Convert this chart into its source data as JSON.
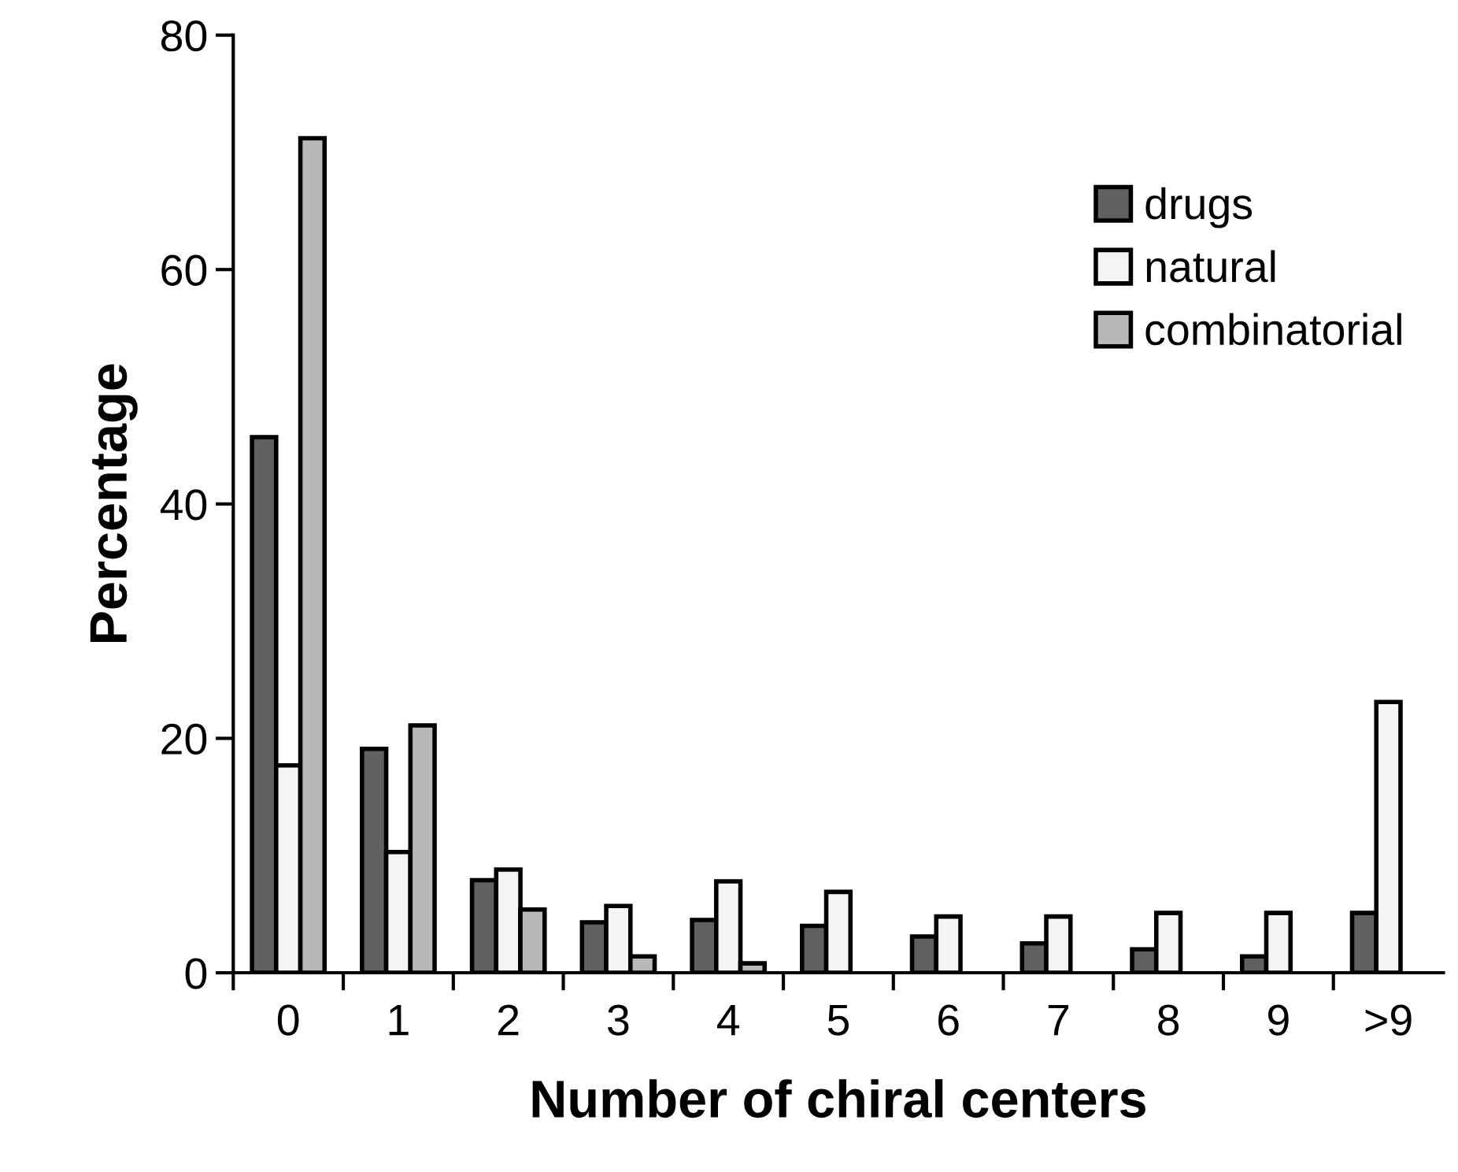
{
  "chart_data": {
    "type": "bar",
    "xlabel": "Number of chiral centers",
    "ylabel": "Percentage",
    "categories": [
      "0",
      "1",
      "2",
      "3",
      "4",
      "5",
      "6",
      "7",
      "8",
      "9",
      ">9"
    ],
    "series": [
      {
        "name": "drugs",
        "color": "#606060",
        "values": [
          45.7,
          19.1,
          7.9,
          4.3,
          4.5,
          4.0,
          3.1,
          2.5,
          2.0,
          1.4,
          5.1
        ]
      },
      {
        "name": "natural",
        "color": "#f4f4f4",
        "values": [
          17.7,
          10.3,
          8.8,
          5.7,
          7.8,
          6.9,
          4.8,
          4.8,
          5.1,
          5.1,
          23.1
        ]
      },
      {
        "name": "combinatorial",
        "color": "#b8b8b8",
        "values": [
          71.2,
          21.1,
          5.4,
          1.4,
          0.8,
          null,
          null,
          null,
          null,
          null,
          null
        ]
      }
    ],
    "ylim": [
      0,
      80
    ],
    "yticks": [
      0,
      20,
      40,
      60,
      80
    ],
    "grid": false,
    "legend": "top right"
  }
}
